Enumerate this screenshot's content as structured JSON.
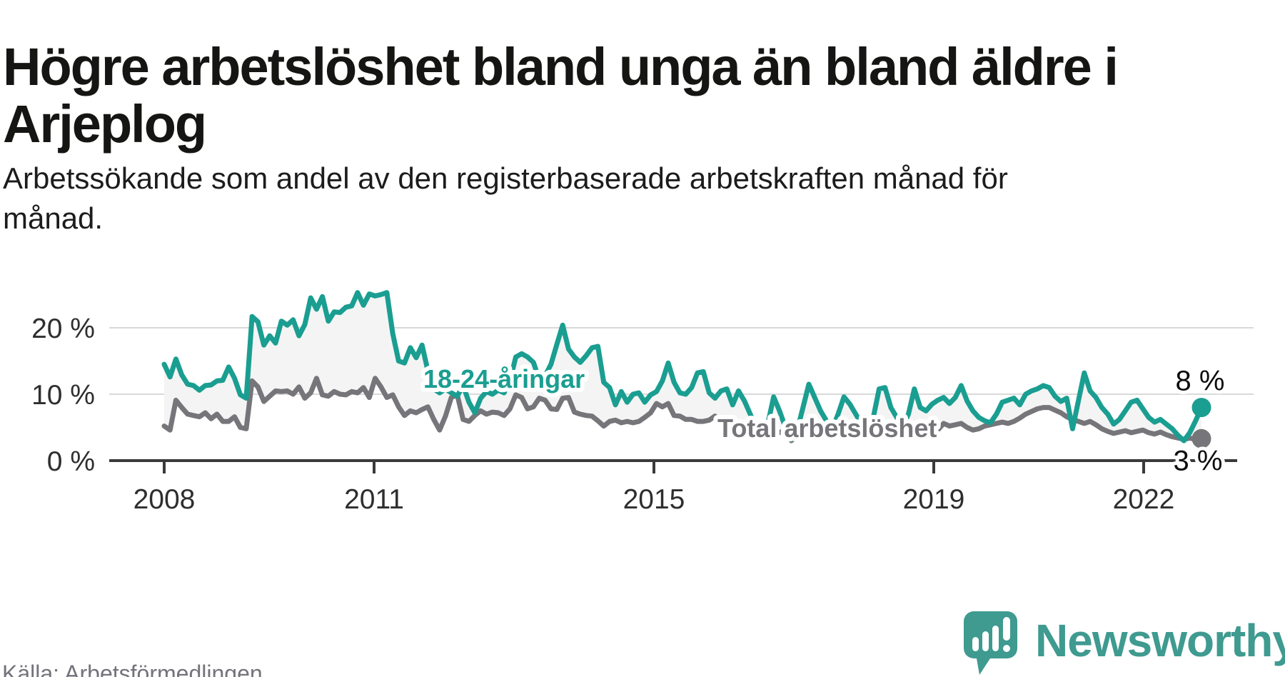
{
  "header": {
    "title": "Högre arbetslöshet bland unga än bland äldre i Arjeplog",
    "subtitle": "Arbetssökande som andel av den registerbaserade arbetskraften månad för månad."
  },
  "footer": {
    "source": "Källa: Arbetsförmedlingen",
    "brand_name": "Newsworthy",
    "brand_icon": "speech-bubble-bar-chart-icon",
    "brand_color": "#3f9a90"
  },
  "chart_data": {
    "type": "line",
    "title": "Högre arbetslöshet bland unga än bland äldre i Arjeplog",
    "frequency": "monthly",
    "x_start_year": 2008,
    "x_tick_labels": [
      "2008",
      "2011",
      "2015",
      "2019",
      "2022"
    ],
    "y_tick_labels": [
      "0 %",
      "10 %",
      "20 %"
    ],
    "ylim": [
      0,
      27
    ],
    "unit": "%",
    "grid": "horizontal",
    "legend_position": "inline-labels",
    "fill_between_color": "#f4f4f4",
    "series": [
      {
        "name": "18-24-åringar",
        "color": "#1a9e91",
        "end_label": "8 %",
        "end_value": 8,
        "values": [
          14.5,
          12.6,
          15.3,
          12.9,
          11.5,
          11.3,
          10.6,
          11.3,
          11.4,
          12.0,
          12.1,
          14.1,
          12.4,
          9.9,
          9.4,
          21.7,
          20.9,
          17.4,
          18.8,
          17.7,
          21.0,
          20.4,
          21.2,
          18.8,
          20.5,
          24.5,
          22.8,
          24.7,
          21.0,
          22.4,
          22.3,
          23.1,
          23.3,
          25.3,
          23.4,
          25.1,
          24.8,
          25.0,
          25.3,
          19.1,
          15.0,
          14.7,
          17.0,
          15.5,
          17.4,
          13.5,
          10.8,
          10.2,
          10.8,
          10.2,
          9.7,
          11.3,
          8.8,
          7.2,
          9.4,
          10.4,
          10.0,
          10.6,
          10.2,
          12.0,
          15.6,
          16.1,
          15.6,
          14.8,
          12.2,
          12.8,
          14.5,
          17.5,
          20.4,
          16.8,
          15.6,
          14.8,
          15.8,
          17.0,
          17.2,
          11.8,
          11.0,
          8.4,
          10.4,
          8.8,
          10.0,
          10.2,
          8.8,
          9.9,
          10.4,
          12.0,
          14.7,
          11.8,
          10.2,
          10.0,
          11.0,
          13.2,
          13.4,
          10.2,
          9.4,
          10.5,
          10.8,
          8.4,
          10.5,
          9.0,
          7.0,
          5.0,
          4.2,
          5.5,
          9.6,
          7.5,
          5.0,
          3.2,
          4.5,
          8.0,
          11.5,
          9.5,
          7.5,
          6.0,
          4.8,
          7.0,
          9.6,
          8.5,
          7.0,
          5.5,
          3.4,
          6.5,
          10.8,
          11.0,
          8.0,
          6.5,
          5.0,
          7.0,
          10.8,
          8.0,
          7.5,
          8.5,
          9.1,
          9.5,
          8.6,
          9.5,
          11.3,
          9.0,
          7.5,
          6.5,
          6.0,
          5.7,
          7.0,
          8.8,
          9.1,
          9.4,
          8.4,
          10.0,
          10.5,
          10.8,
          11.3,
          11.0,
          9.7,
          8.9,
          9.4,
          4.8,
          9.0,
          13.2,
          10.5,
          9.5,
          8.0,
          7.0,
          5.5,
          6.2,
          7.5,
          8.8,
          9.1,
          7.8,
          6.5,
          5.8,
          6.2,
          5.5,
          4.8,
          3.8,
          3.0,
          4.2,
          6.0,
          8.0
        ]
      },
      {
        "name": "Total arbetslöshet",
        "color": "#76767a",
        "end_label": "3 %",
        "end_value": 3,
        "values": [
          5.2,
          4.6,
          9.1,
          8.0,
          7.0,
          6.8,
          6.6,
          7.2,
          6.3,
          7.0,
          5.9,
          5.9,
          6.6,
          5.0,
          4.8,
          12.0,
          11.1,
          8.9,
          9.7,
          10.5,
          10.4,
          10.5,
          10.0,
          11.1,
          9.4,
          10.2,
          12.4,
          9.9,
          9.7,
          10.4,
          10.0,
          9.9,
          10.4,
          10.2,
          11.0,
          9.5,
          12.4,
          11.1,
          9.5,
          9.9,
          8.1,
          6.8,
          7.5,
          7.2,
          7.7,
          8.1,
          6.2,
          4.6,
          6.7,
          9.5,
          9.9,
          6.2,
          5.9,
          6.8,
          7.5,
          7.0,
          7.3,
          7.2,
          6.8,
          7.8,
          9.9,
          9.5,
          7.8,
          8.1,
          9.4,
          9.1,
          7.8,
          7.7,
          9.4,
          9.5,
          7.3,
          7.0,
          6.8,
          6.7,
          6.0,
          5.2,
          5.9,
          6.1,
          5.7,
          5.9,
          5.7,
          5.9,
          6.5,
          7.2,
          8.6,
          8.1,
          8.6,
          6.8,
          6.7,
          6.2,
          6.2,
          5.9,
          5.9,
          6.1,
          6.7,
          5.9,
          5.4,
          5.2,
          5.2,
          4.8,
          4.5,
          4.0,
          3.6,
          4.2,
          4.5,
          4.3,
          4.0,
          3.0,
          3.8,
          4.5,
          5.0,
          4.6,
          4.2,
          4.5,
          4.8,
          4.4,
          4.0,
          4.5,
          5.0,
          4.8,
          3.5,
          4.2,
          5.0,
          4.6,
          4.2,
          4.0,
          4.4,
          4.8,
          5.2,
          4.5,
          4.6,
          5.0,
          4.6,
          5.6,
          5.2,
          5.4,
          5.6,
          5.0,
          4.6,
          4.8,
          5.2,
          5.4,
          5.6,
          5.8,
          5.6,
          5.9,
          6.4,
          7.0,
          7.4,
          7.8,
          8.0,
          8.0,
          7.6,
          7.2,
          6.6,
          6.2,
          5.9,
          5.6,
          5.9,
          5.4,
          4.8,
          4.4,
          4.1,
          4.3,
          4.5,
          4.2,
          4.4,
          4.6,
          4.2,
          4.0,
          4.3,
          3.9,
          3.6,
          3.4,
          3.2,
          3.4,
          3.2,
          3.3
        ]
      }
    ]
  }
}
